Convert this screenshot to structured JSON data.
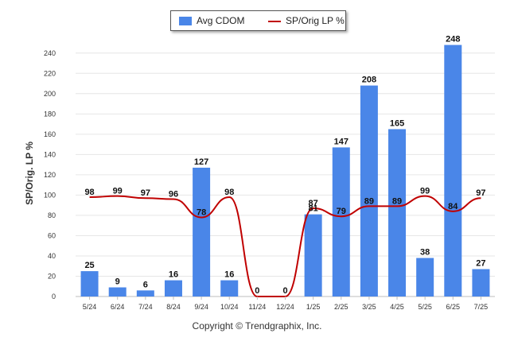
{
  "chart_data": {
    "type": "bar+line",
    "categories": [
      "5/24",
      "6/24",
      "7/24",
      "8/24",
      "9/24",
      "10/24",
      "11/24",
      "12/24",
      "1/25",
      "2/25",
      "3/25",
      "4/25",
      "5/25",
      "6/25",
      "7/25"
    ],
    "series": [
      {
        "name": "Avg CDOM",
        "type": "bar",
        "values": [
          25,
          9,
          6,
          16,
          127,
          16,
          0,
          0,
          81,
          147,
          208,
          165,
          38,
          248,
          27
        ],
        "color": "#4a86e8"
      },
      {
        "name": "SP/Orig LP %",
        "type": "line",
        "values": [
          98,
          99,
          97,
          96,
          78,
          98,
          null,
          null,
          87,
          79,
          89,
          89,
          99,
          84,
          97
        ],
        "color": "#c00000"
      }
    ],
    "ylabel": "SP/Orig. LP %",
    "ylim": [
      0,
      250
    ],
    "yticks": [
      0,
      20,
      40,
      60,
      80,
      100,
      120,
      140,
      160,
      180,
      200,
      220,
      240
    ],
    "grid": true,
    "legend_position": "top-center"
  },
  "legend": {
    "bar_label": "Avg CDOM",
    "line_label": "SP/Orig LP %"
  },
  "footer": "Copyright © Trendgraphix, Inc."
}
